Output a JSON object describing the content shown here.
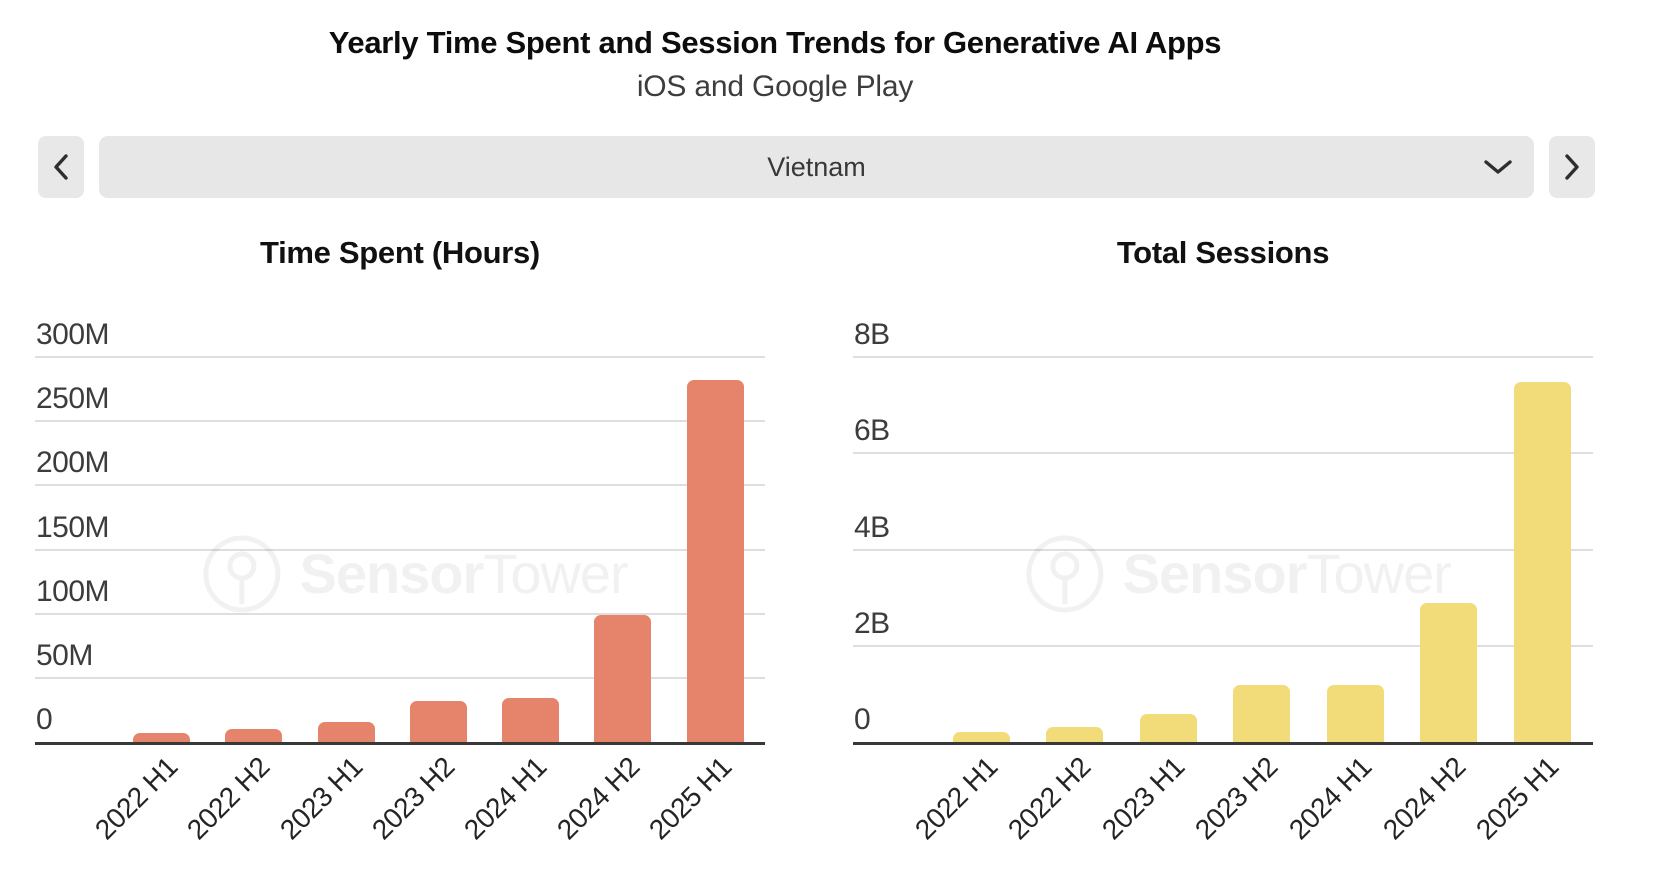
{
  "header": {
    "title": "Yearly Time Spent and Session Trends for Generative AI Apps",
    "subtitle": "iOS and Google Play"
  },
  "controls": {
    "previous_button_icon": "chevron-left",
    "next_button_icon": "chevron-right",
    "select_caret_icon": "chevron-down",
    "selected_country": "Vietnam"
  },
  "watermark": {
    "logo_icon": "sensortower-logo",
    "brand_bold": "Sensor",
    "brand_light": "Tower"
  },
  "colors": {
    "time_spent_bar": "#E5846B",
    "sessions_bar": "#F2DC7A",
    "gridline": "#DEDEDE",
    "axis_line": "#383838",
    "control_background": "#E7E7E7"
  },
  "chart_data": [
    {
      "type": "bar",
      "title": "Time Spent (Hours)",
      "categories": [
        "2022 H1",
        "2022 H2",
        "2023 H1",
        "2023 H2",
        "2024 H1",
        "2024 H2",
        "2025 H1"
      ],
      "values": [
        8000000,
        11000000,
        16000000,
        33000000,
        35000000,
        100000000,
        283000000
      ],
      "y_ticks": [
        {
          "value": 0,
          "label": "0"
        },
        {
          "value": 50000000,
          "label": "50M"
        },
        {
          "value": 100000000,
          "label": "100M"
        },
        {
          "value": 150000000,
          "label": "150M"
        },
        {
          "value": 200000000,
          "label": "200M"
        },
        {
          "value": 250000000,
          "label": "250M"
        },
        {
          "value": 300000000,
          "label": "300M"
        }
      ],
      "ylim": [
        0,
        300000000
      ],
      "grid": "horizontal",
      "legend": "none",
      "bar_color": "#E5846B"
    },
    {
      "type": "bar",
      "title": "Total Sessions",
      "categories": [
        "2022 H1",
        "2022 H2",
        "2023 H1",
        "2023 H2",
        "2024 H1",
        "2024 H2",
        "2025 H1"
      ],
      "values": [
        220000000,
        330000000,
        600000000,
        1200000000,
        1200000000,
        2900000000,
        7500000000
      ],
      "y_ticks": [
        {
          "value": 0,
          "label": "0"
        },
        {
          "value": 2000000000,
          "label": "2B"
        },
        {
          "value": 4000000000,
          "label": "4B"
        },
        {
          "value": 6000000000,
          "label": "6B"
        },
        {
          "value": 8000000000,
          "label": "8B"
        }
      ],
      "ylim": [
        0,
        8000000000
      ],
      "grid": "horizontal",
      "legend": "none",
      "bar_color": "#F2DC7A"
    }
  ]
}
